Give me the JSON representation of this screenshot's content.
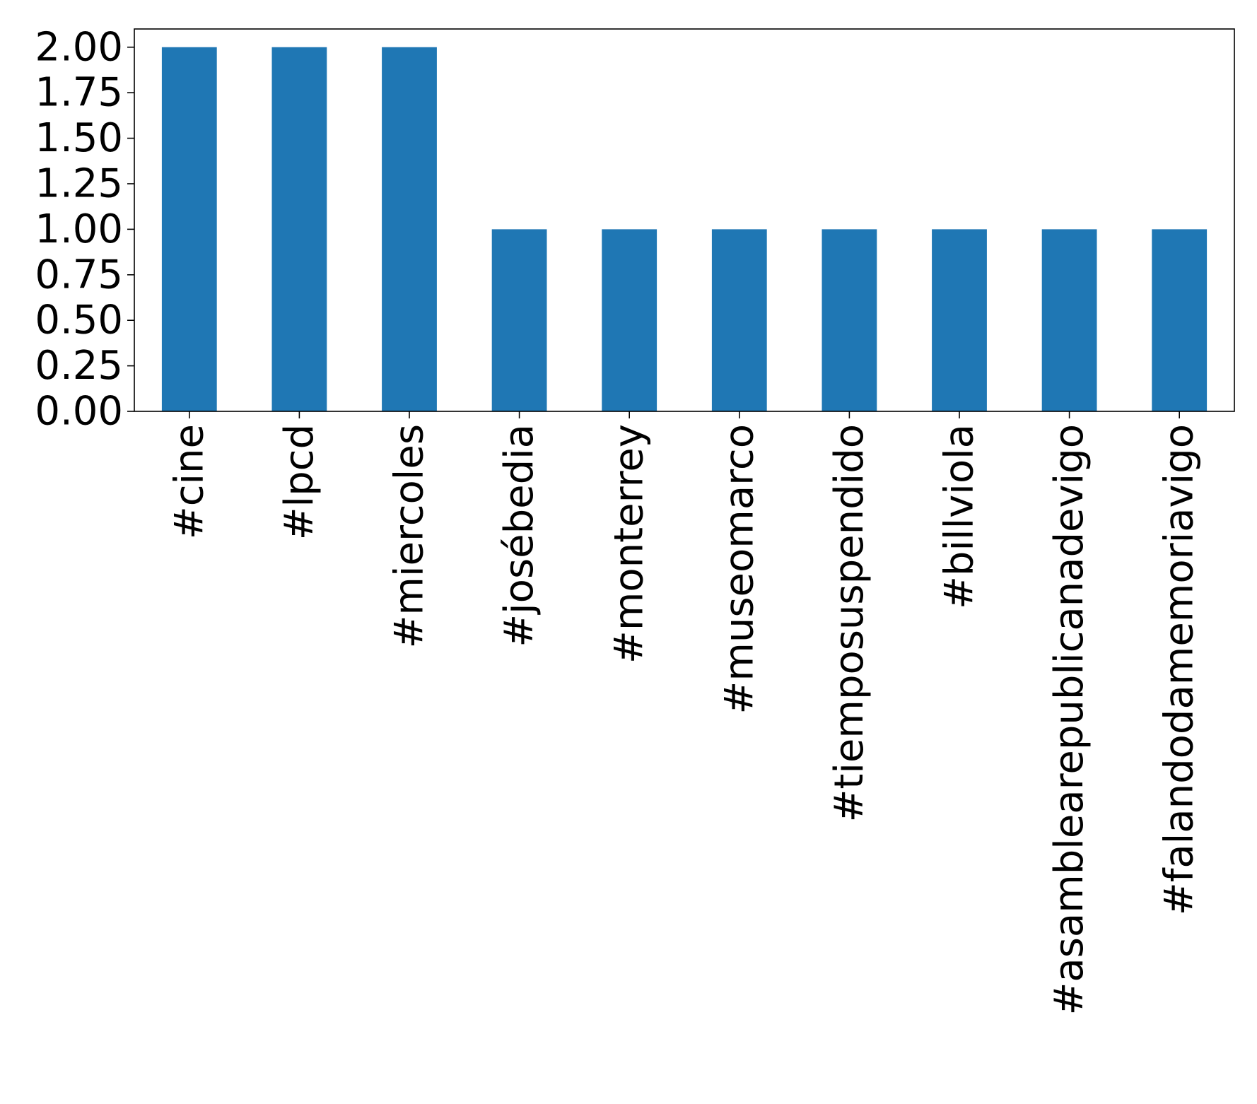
{
  "chart_data": {
    "type": "bar",
    "title": "",
    "xlabel": "",
    "ylabel": "",
    "categories": [
      "#cine",
      "#lpcd",
      "#miercoles",
      "#josébedia",
      "#monterrey",
      "#museomarco",
      "#tiemposuspendido",
      "#billviola",
      "#asamblearepublicanadevigo",
      "#falandodamemoriavigo"
    ],
    "values": [
      2,
      2,
      2,
      1,
      1,
      1,
      1,
      1,
      1,
      1
    ],
    "ylim": [
      0,
      2.1
    ],
    "yticks": [
      "0.00",
      "0.25",
      "0.50",
      "0.75",
      "1.00",
      "1.25",
      "1.50",
      "1.75",
      "2.00"
    ],
    "bar_color": "#1f77b4",
    "grid": false,
    "legend": "none"
  }
}
